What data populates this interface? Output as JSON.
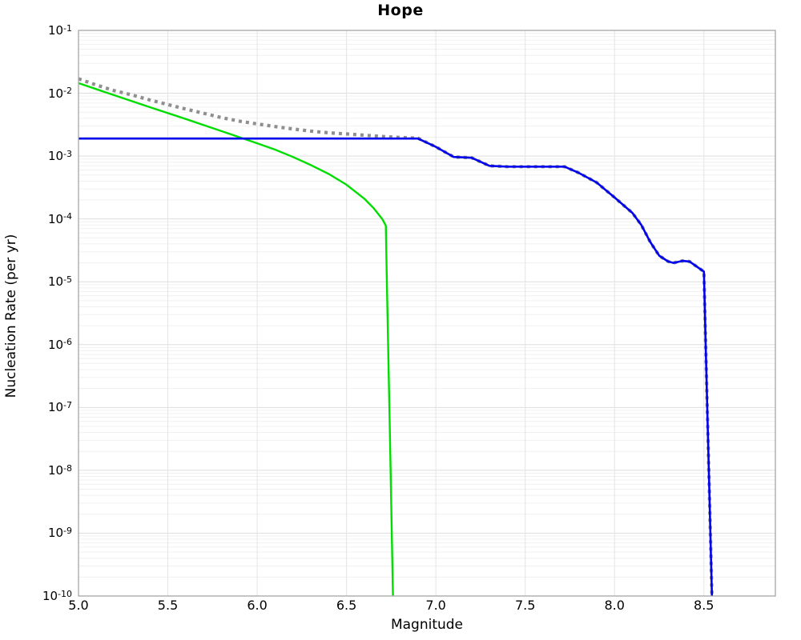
{
  "chart_data": {
    "type": "line",
    "title": "Hope",
    "xlabel": "Magnitude",
    "ylabel": "Nucleation Rate (per yr)",
    "xlim": [
      5.0,
      8.9
    ],
    "ylog": true,
    "ylim": [
      1e-10,
      0.1
    ],
    "x_ticks": [
      5.0,
      5.5,
      6.0,
      6.5,
      7.0,
      7.5,
      8.0,
      8.5
    ],
    "x_tick_labels": [
      "5.0",
      "5.5",
      "6.0",
      "6.5",
      "7.0",
      "7.5",
      "8.0",
      "8.5"
    ],
    "y_tick_exponents": [
      -1,
      -2,
      -3,
      -4,
      -5,
      -6,
      -7,
      -8,
      -9,
      -10
    ],
    "grid": {
      "major_h_color": "#dedede",
      "minor_h_color": "#f0f0f0",
      "vertical_color": "#e4e4e4",
      "frame_color": "#a6a6a6",
      "background": "#ffffff"
    },
    "legend": "none",
    "series": [
      {
        "name": "upper-bound-dotted-curve",
        "color": "#8f8f8f",
        "style": "dotted",
        "width": 4.2,
        "points": [
          [
            5.0,
            0.017
          ],
          [
            5.1,
            0.0135
          ],
          [
            5.2,
            0.011
          ],
          [
            5.3,
            0.0094
          ],
          [
            5.4,
            0.0078
          ],
          [
            5.5,
            0.0066
          ],
          [
            5.6,
            0.0056
          ],
          [
            5.7,
            0.0048
          ],
          [
            5.8,
            0.0041
          ],
          [
            5.9,
            0.0036
          ],
          [
            6.0,
            0.00325
          ],
          [
            6.1,
            0.00295
          ],
          [
            6.2,
            0.0027
          ],
          [
            6.3,
            0.0025
          ],
          [
            6.4,
            0.00235
          ],
          [
            6.5,
            0.00225
          ],
          [
            6.6,
            0.00215
          ],
          [
            6.7,
            0.00205
          ],
          [
            6.8,
            0.00198
          ],
          [
            6.9,
            0.00193
          ],
          [
            7.0,
            0.0014
          ],
          [
            7.1,
            0.00097
          ],
          [
            7.2,
            0.00094
          ],
          [
            7.3,
            0.0007
          ],
          [
            7.4,
            0.00068
          ],
          [
            7.5,
            0.00068
          ],
          [
            7.6,
            0.00068
          ],
          [
            7.72,
            0.00068
          ],
          [
            7.8,
            0.00054
          ],
          [
            7.9,
            0.00038
          ],
          [
            8.0,
            0.00022
          ],
          [
            8.1,
            0.000125
          ],
          [
            8.15,
            8e-05
          ],
          [
            8.2,
            4.3e-05
          ],
          [
            8.25,
            2.6e-05
          ],
          [
            8.3,
            2.1e-05
          ],
          [
            8.33,
            2e-05
          ],
          [
            8.38,
            2.15e-05
          ],
          [
            8.42,
            2.1e-05
          ],
          [
            8.5,
            1.45e-05
          ],
          [
            8.51,
            1e-06
          ],
          [
            8.52,
            7.4e-08
          ],
          [
            8.53,
            5.2e-09
          ],
          [
            8.54,
            3.7e-10
          ],
          [
            8.545,
            1e-10
          ]
        ]
      },
      {
        "name": "green-curve",
        "color": "#00dd00",
        "style": "solid",
        "width": 2.4,
        "points": [
          [
            5.0,
            0.0145
          ],
          [
            5.2,
            0.0093
          ],
          [
            5.4,
            0.006
          ],
          [
            5.6,
            0.0039
          ],
          [
            5.8,
            0.0025
          ],
          [
            5.9,
            0.002
          ],
          [
            6.0,
            0.0016
          ],
          [
            6.1,
            0.00127
          ],
          [
            6.2,
            0.00097
          ],
          [
            6.3,
            0.00072
          ],
          [
            6.4,
            0.00052
          ],
          [
            6.5,
            0.00035
          ],
          [
            6.6,
            0.00021
          ],
          [
            6.65,
            0.00015
          ],
          [
            6.7,
            0.0001
          ],
          [
            6.72,
            7.8e-05
          ],
          [
            6.725,
            1.3e-05
          ],
          [
            6.73,
            2.6e-06
          ],
          [
            6.735,
            5e-07
          ],
          [
            6.74,
            9e-08
          ],
          [
            6.745,
            1.7e-08
          ],
          [
            6.75,
            3e-09
          ],
          [
            6.755,
            5.5e-10
          ],
          [
            6.76,
            1e-10
          ]
        ]
      },
      {
        "name": "blue-curve",
        "color": "#0000ee",
        "style": "solid",
        "width": 2.6,
        "points": [
          [
            5.0,
            0.0019
          ],
          [
            6.9,
            0.0019
          ],
          [
            7.0,
            0.0014
          ],
          [
            7.1,
            0.00097
          ],
          [
            7.2,
            0.00094
          ],
          [
            7.3,
            0.0007
          ],
          [
            7.4,
            0.00068
          ],
          [
            7.5,
            0.00068
          ],
          [
            7.6,
            0.00068
          ],
          [
            7.72,
            0.00068
          ],
          [
            7.8,
            0.00054
          ],
          [
            7.9,
            0.00038
          ],
          [
            8.0,
            0.00022
          ],
          [
            8.1,
            0.000125
          ],
          [
            8.15,
            8e-05
          ],
          [
            8.2,
            4.3e-05
          ],
          [
            8.25,
            2.6e-05
          ],
          [
            8.3,
            2.1e-05
          ],
          [
            8.33,
            2e-05
          ],
          [
            8.38,
            2.15e-05
          ],
          [
            8.42,
            2.1e-05
          ],
          [
            8.5,
            1.45e-05
          ],
          [
            8.51,
            1e-06
          ],
          [
            8.52,
            7.4e-08
          ],
          [
            8.53,
            5.2e-09
          ],
          [
            8.54,
            3.7e-10
          ],
          [
            8.545,
            1e-10
          ]
        ]
      }
    ]
  }
}
